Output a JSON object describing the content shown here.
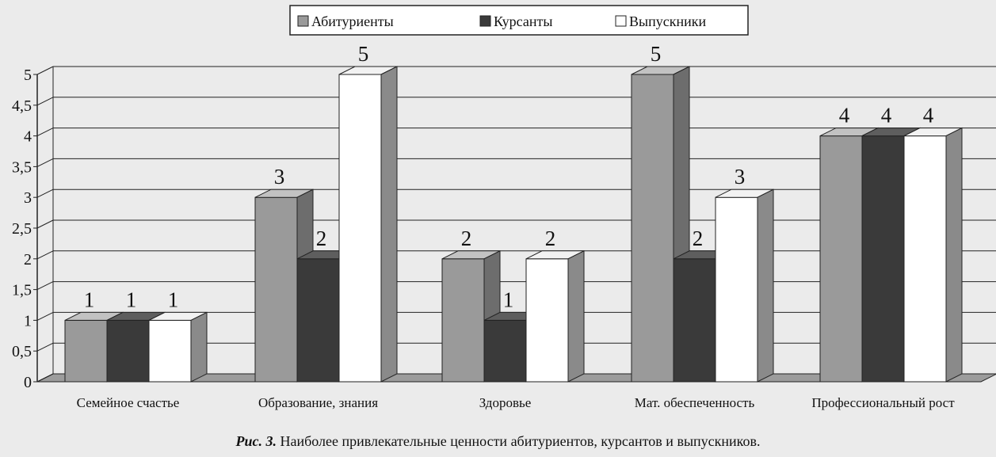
{
  "caption": {
    "figure_label": "Рис. 3.",
    "text": "Наиболее привлекательные ценности абитуриентов, курсантов и выпускников."
  },
  "chart_data": {
    "type": "bar",
    "title": "",
    "xlabel": "",
    "ylabel": "",
    "ylim": [
      0,
      5
    ],
    "yticks": [
      "0",
      "0,5",
      "1",
      "1,5",
      "2",
      "2,5",
      "3",
      "3,5",
      "4",
      "4,5",
      "5"
    ],
    "grid": true,
    "legend_position": "top-center",
    "categories": [
      "Семейное счастье",
      "Образование, знания",
      "Здоровье",
      "Мат. обеспеченность",
      "Профессиональный рост"
    ],
    "series": [
      {
        "name": "Абитуриенты",
        "values": [
          1,
          3,
          2,
          5,
          4
        ],
        "color": "#9a9a9a"
      },
      {
        "name": "Курсанты",
        "values": [
          1,
          2,
          1,
          2,
          4
        ],
        "color": "#3a3a3a"
      },
      {
        "name": "Выпускники",
        "values": [
          1,
          5,
          2,
          3,
          4
        ],
        "color": "#ffffff"
      }
    ],
    "data_labels": [
      [
        "1",
        "3",
        "2",
        "5",
        "4"
      ],
      [
        "1",
        "2",
        "1",
        "2",
        "4"
      ],
      [
        "1",
        "5",
        "2",
        "3",
        "4"
      ]
    ]
  }
}
